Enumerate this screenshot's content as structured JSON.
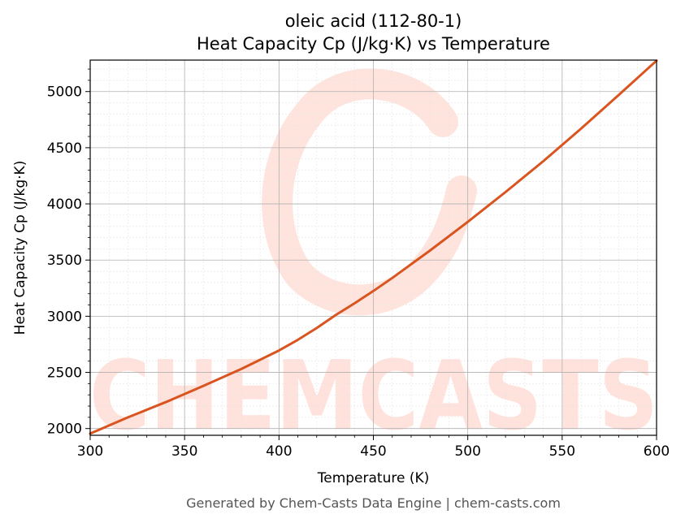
{
  "chart_data": {
    "type": "line",
    "title_lines": [
      "oleic acid (112-80-1)",
      "Heat Capacity Cp (J/kg·K) vs Temperature"
    ],
    "xlabel": "Temperature (K)",
    "ylabel": "Heat Capacity Cp (J/kg·K)",
    "xlim": [
      300,
      600
    ],
    "ylim": [
      1940,
      5280
    ],
    "xticks": [
      300,
      350,
      400,
      450,
      500,
      550,
      600
    ],
    "yticks": [
      2000,
      2500,
      3000,
      3500,
      4000,
      4500,
      5000
    ],
    "grid": true,
    "line_color": "#d9541f",
    "series": [
      {
        "x": [
          300,
          320,
          340,
          360,
          380,
          400,
          410,
          420,
          430,
          440,
          450,
          460,
          480,
          500,
          520,
          540,
          560,
          580,
          600
        ],
        "y": [
          1955,
          2100,
          2235,
          2380,
          2530,
          2695,
          2790,
          2895,
          3010,
          3115,
          3225,
          3340,
          3585,
          3840,
          4105,
          4380,
          4670,
          4970,
          5275
        ]
      }
    ]
  },
  "watermark": {
    "text": "CHEMCASTS",
    "color": "#ffd9d0"
  },
  "footer": "Generated by Chem-Casts Data Engine | chem-casts.com"
}
